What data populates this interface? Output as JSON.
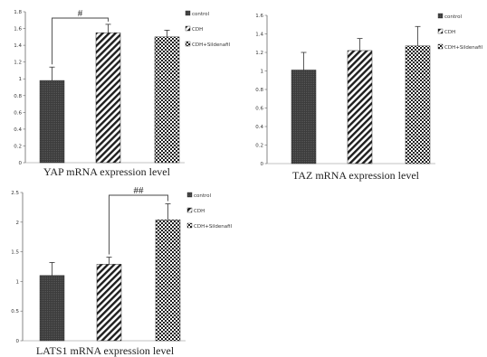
{
  "chart_data": [
    {
      "type": "bar",
      "title": "YAP mRNA expression level",
      "xlabel": "",
      "ylabel": "",
      "categories": [
        "control",
        "CDH",
        "CDH+Sildenafil"
      ],
      "values": [
        0.98,
        1.55,
        1.5
      ],
      "errors": [
        0.16,
        0.1,
        0.08
      ],
      "ylim": [
        0,
        1.8
      ],
      "yticks": [
        0,
        0.2,
        0.4,
        0.6,
        0.8,
        1,
        1.2,
        1.4,
        1.6,
        1.8
      ],
      "ytick_labels": [
        "0",
        "0.2",
        "0.4",
        "0.6",
        "0.8",
        "1",
        "1.2",
        "1.4",
        "1.6",
        "1.8"
      ],
      "legend": [
        "control",
        "CDH",
        "CDH+Sildenafil"
      ],
      "legend_position": "right",
      "significance": {
        "between": [
          0,
          1
        ],
        "label": "#"
      }
    },
    {
      "type": "bar",
      "title": "TAZ mRNA expression level",
      "xlabel": "",
      "ylabel": "",
      "categories": [
        "control",
        "CDH",
        "CDH+Sildenafil"
      ],
      "values": [
        1.01,
        1.22,
        1.27
      ],
      "errors": [
        0.19,
        0.13,
        0.21
      ],
      "ylim": [
        0,
        1.6
      ],
      "yticks": [
        0,
        0.2,
        0.4,
        0.6,
        0.8,
        1,
        1.2,
        1.4,
        1.6
      ],
      "ytick_labels": [
        "0",
        "0.2",
        "0.4",
        "0.6",
        "0.8",
        "1",
        "1.2",
        "1.4",
        "1.6"
      ],
      "legend": [
        "control",
        "CDH",
        "CDH+Sildenafil"
      ],
      "legend_position": "right",
      "significance": null
    },
    {
      "type": "bar",
      "title": "LATS1 mRNA expression level",
      "xlabel": "",
      "ylabel": "",
      "categories": [
        "control",
        "CDH",
        "CDH+Sildenafil"
      ],
      "values": [
        1.1,
        1.29,
        2.04
      ],
      "errors": [
        0.22,
        0.12,
        0.27
      ],
      "ylim": [
        0,
        2.5
      ],
      "yticks": [
        0,
        0.5,
        1,
        1.5,
        2,
        2.5
      ],
      "ytick_labels": [
        "0",
        "0.5",
        "1",
        "1.5",
        "2",
        "2.5"
      ],
      "legend": [
        "control",
        "CDH",
        "CDH+Sildenafil"
      ],
      "legend_position": "right",
      "significance": {
        "between": [
          1,
          2
        ],
        "label": "##"
      }
    }
  ],
  "colors": {
    "control": "#3c3c3c",
    "cdh_stripe": "#1e1e1e",
    "sildenafil_check": "#1e1e1e",
    "axis": "#555555",
    "error_bar": "#333333"
  }
}
